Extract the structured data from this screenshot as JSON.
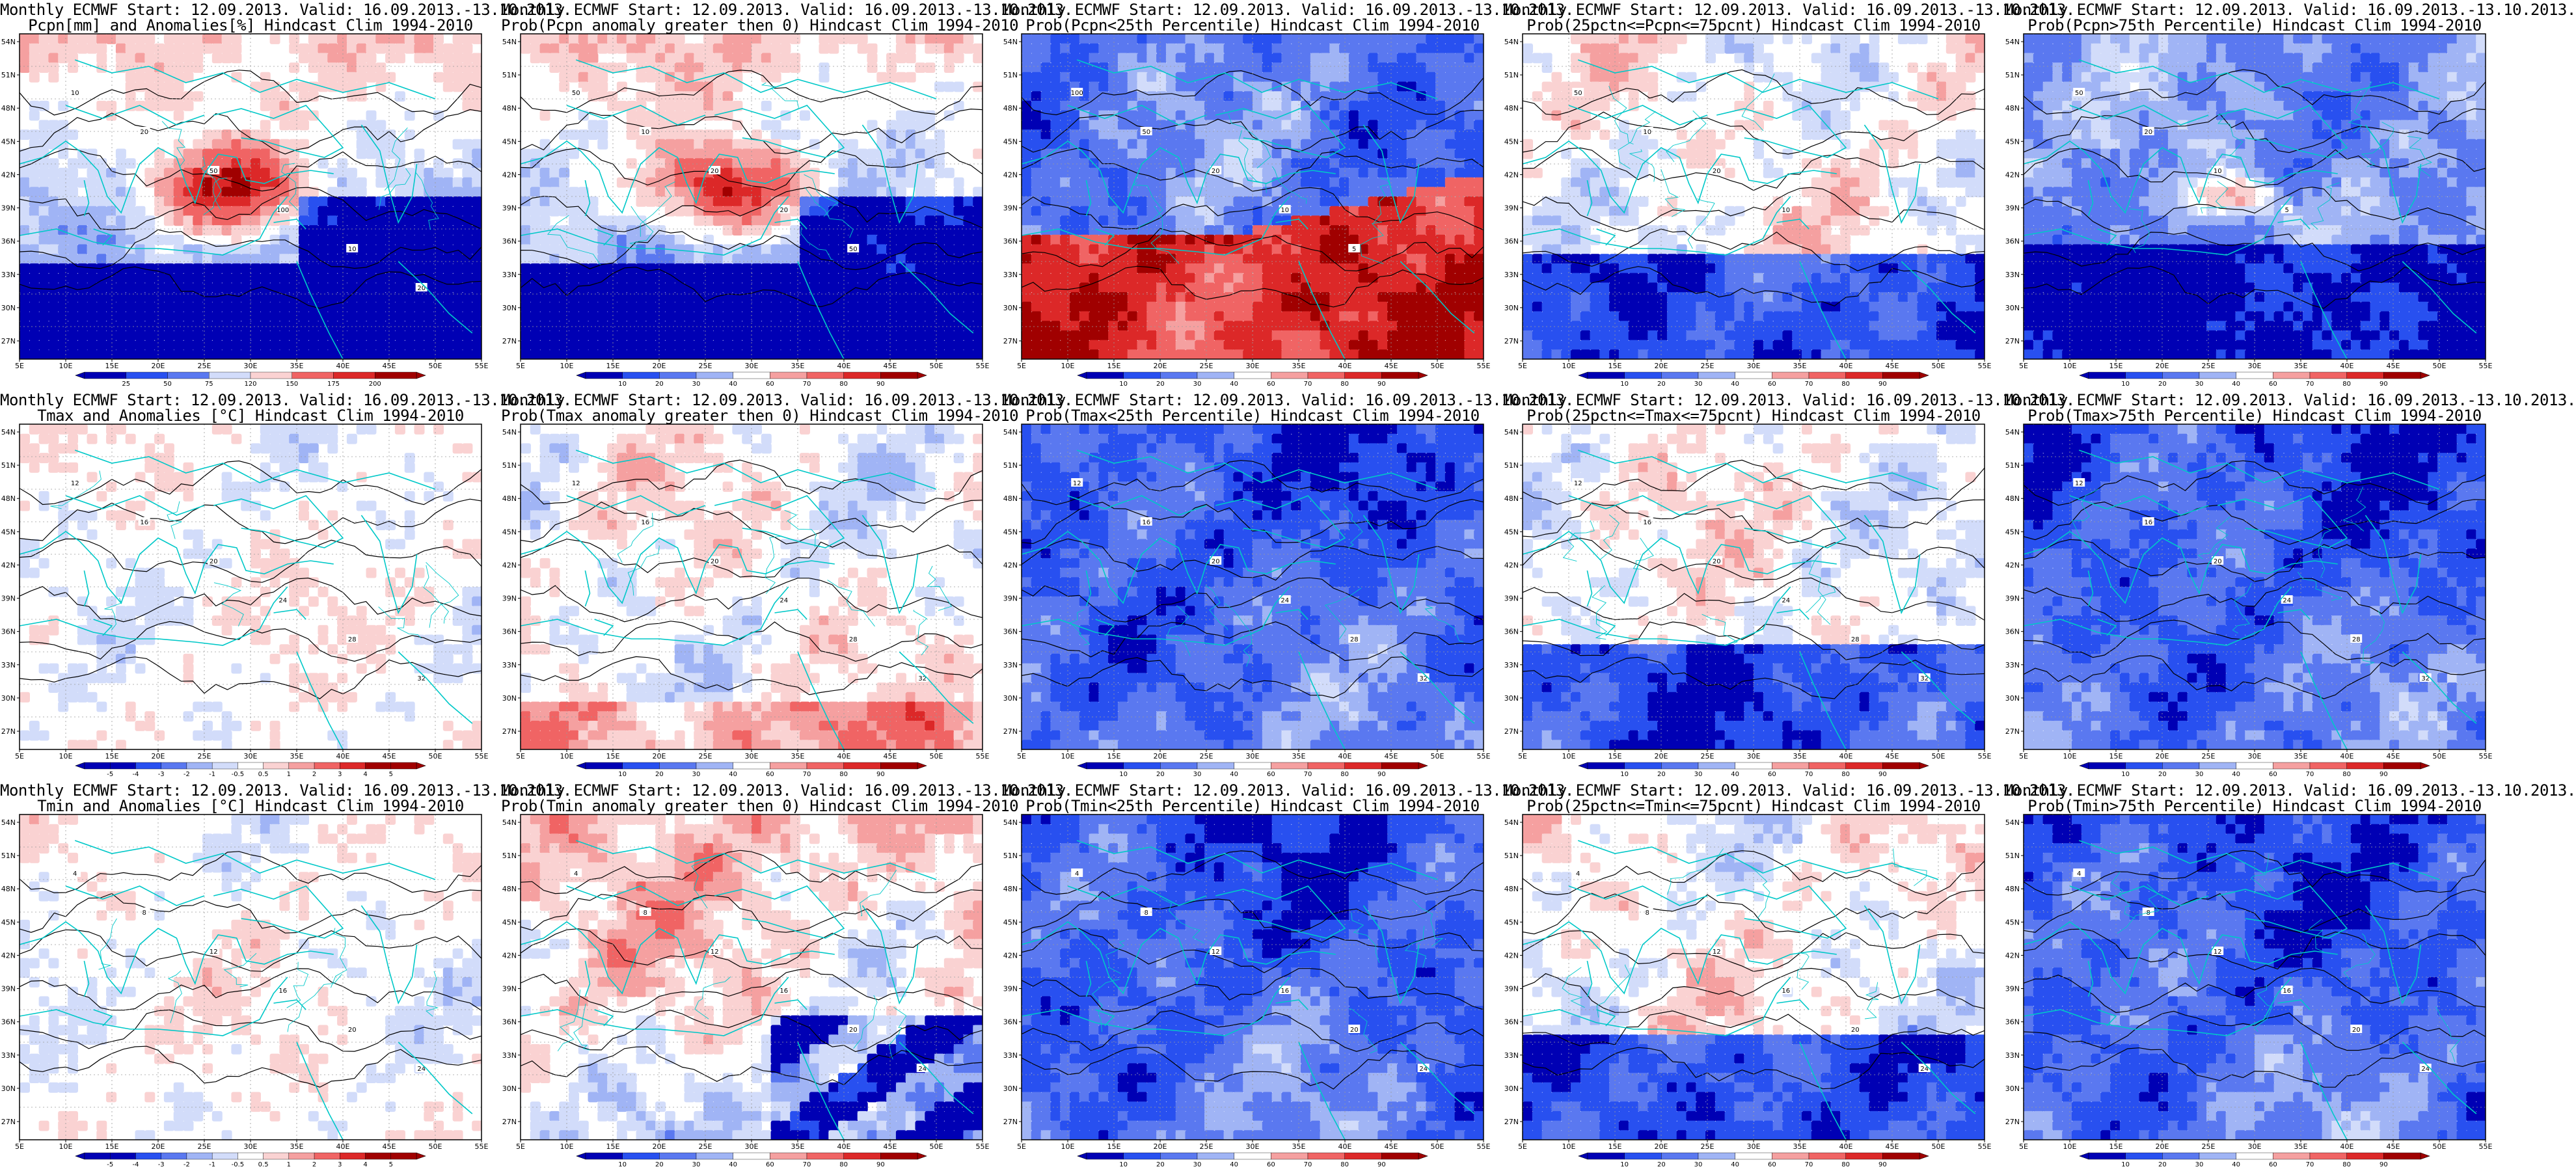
{
  "scales": {
    "pcpn_anom": [
      "25",
      "50",
      "75",
      "120",
      "150",
      "175",
      "200"
    ],
    "prob": [
      "10",
      "20",
      "30",
      "40",
      "60",
      "70",
      "80",
      "90"
    ],
    "temp_anom": [
      "-5",
      "-4",
      "-3",
      "-2",
      "-1",
      "-0.5",
      "0.5",
      "1",
      "2",
      "3",
      "4",
      "5"
    ]
  },
  "axes": {
    "x_ticks": [
      "5E",
      "10E",
      "15E",
      "20E",
      "25E",
      "30E",
      "35E",
      "40E",
      "45E",
      "50E",
      "55E"
    ],
    "y_ticks": [
      "54N",
      "51N",
      "48N",
      "45N",
      "42N",
      "39N",
      "36N",
      "33N",
      "30N",
      "27N"
    ]
  },
  "palette": {
    "deep_blue": "#0000b4",
    "blue": "#2850f0",
    "mid_blue": "#5a78f0",
    "light_blue": "#a0b4f5",
    "pale_blue": "#d2dcfa",
    "white": "#ffffff",
    "pale_red": "#fad2d2",
    "light_red": "#f5a0a0",
    "mid_red": "#f06464",
    "red": "#dc2828",
    "deep_red": "#a00000",
    "coast": "#00c8c8",
    "contour": "#000000"
  },
  "panels": [
    {
      "id": "p00",
      "row": 0,
      "col": 0,
      "title1": "Monthly ECMWF Start: 12.09.2013. Valid: 16.09.2013.-13.10.2013.",
      "title2": "Pcpn[mm] and Anomalies[%] Hindcast Clim 1994-2010",
      "scale": "pcpn_anom",
      "style": "pcpn_anom",
      "contour_labels": [
        "10",
        "20",
        "50",
        "100",
        "10",
        "20",
        "5"
      ]
    },
    {
      "id": "p01",
      "row": 0,
      "col": 1,
      "title1": "Monthly ECMWF Start: 12.09.2013. Valid: 16.09.2013.-13.10.2013.",
      "title2": "Prob(Pcpn anomaly greater then 0) Hindcast Clim 1994-2010",
      "scale": "prob",
      "style": "pcpn_anom",
      "contour_labels": [
        "50",
        "10",
        "20",
        "20",
        "50"
      ]
    },
    {
      "id": "p02",
      "row": 0,
      "col": 2,
      "title1": "Monthly ECMWF Start: 12.09.2013. Valid: 16.09.2013.-13.10.2013.",
      "title2": "Prob(Pcpn<25th Percentile) Hindcast Clim 1994-2010",
      "scale": "prob",
      "style": "dry",
      "contour_labels": [
        "100",
        "50",
        "20",
        "10",
        "5"
      ]
    },
    {
      "id": "p03",
      "row": 0,
      "col": 3,
      "title1": "Monthly ECMWF Start: 12.09.2013. Valid: 16.09.2013.-13.10.2013.",
      "title2": "Prob(25pctn<=Pcpn<=75pcnt) Hindcast Clim 1994-2010",
      "scale": "prob",
      "style": "mid",
      "contour_labels": [
        "50",
        "10",
        "20",
        "10"
      ]
    },
    {
      "id": "p04",
      "row": 0,
      "col": 4,
      "title1": "Monthly ECMWF Start: 12.09.2013. Valid: 16.09.2013.-13.10.2013.",
      "title2": "Prob(Pcpn>75th Percentile) Hindcast Clim 1994-2010",
      "scale": "prob",
      "style": "wet",
      "contour_labels": [
        "50",
        "20",
        "10",
        "5"
      ]
    },
    {
      "id": "p10",
      "row": 1,
      "col": 0,
      "title1": "Monthly ECMWF Start: 12.09.2013. Valid: 16.09.2013.-13.10.2013.",
      "title2": "Tmax and Anomalies [°C] Hindcast Clim 1994-2010",
      "scale": "temp_anom",
      "style": "neutral",
      "contour_labels": [
        "12",
        "16",
        "20",
        "24",
        "28",
        "32"
      ]
    },
    {
      "id": "p11",
      "row": 1,
      "col": 1,
      "title1": "Monthly ECMWF Start: 12.09.2013. Valid: 16.09.2013.-13.10.2013.",
      "title2": "Prob(Tmax anomaly greater then 0) Hindcast Clim 1994-2010",
      "scale": "prob",
      "style": "warm_mix",
      "contour_labels": [
        "12",
        "16",
        "20",
        "24",
        "28",
        "32"
      ]
    },
    {
      "id": "p12",
      "row": 1,
      "col": 2,
      "title1": "Monthly ECMWF Start: 12.09.2013. Valid: 16.09.2013.-13.10.2013.",
      "title2": "Prob(Tmax<25th Percentile) Hindcast Clim 1994-2010",
      "scale": "prob",
      "style": "cold",
      "contour_labels": [
        "12",
        "16",
        "20",
        "24",
        "28",
        "32"
      ]
    },
    {
      "id": "p13",
      "row": 1,
      "col": 3,
      "title1": "Monthly ECMWF Start: 12.09.2013. Valid: 16.09.2013.-13.10.2013.",
      "title2": "Prob(25pctn<=Tmax<=75pcnt) Hindcast Clim 1994-2010",
      "scale": "prob",
      "style": "mid",
      "contour_labels": [
        "12",
        "16",
        "20",
        "24",
        "28",
        "32"
      ]
    },
    {
      "id": "p14",
      "row": 1,
      "col": 4,
      "title1": "Monthly ECMWF Start: 12.09.2013. Valid: 16.09.2013.-13.10.2013.",
      "title2": "Prob(Tmax>75th Percentile) Hindcast Clim 1994-2010",
      "scale": "prob",
      "style": "cold",
      "contour_labels": [
        "12",
        "16",
        "20",
        "24",
        "28",
        "32"
      ]
    },
    {
      "id": "p20",
      "row": 2,
      "col": 0,
      "title1": "Monthly ECMWF Start: 12.09.2013. Valid: 16.09.2013.-13.10.2013.",
      "title2": "Tmin and Anomalies [°C] Hindcast Clim 1994-2010",
      "scale": "temp_anom",
      "style": "neutral",
      "contour_labels": [
        "4",
        "8",
        "12",
        "16",
        "20",
        "24"
      ]
    },
    {
      "id": "p21",
      "row": 2,
      "col": 1,
      "title1": "Monthly ECMWF Start: 12.09.2013. Valid: 16.09.2013.-13.10.2013.",
      "title2": "Prob(Tmin anomaly greater then 0) Hindcast Clim 1994-2010",
      "scale": "prob",
      "style": "warm",
      "contour_labels": [
        "4",
        "8",
        "12",
        "16",
        "20",
        "24"
      ]
    },
    {
      "id": "p22",
      "row": 2,
      "col": 2,
      "title1": "Monthly ECMWF Start: 12.09.2013. Valid: 16.09.2013.-13.10.2013.",
      "title2": "Prob(Tmin<25th Percentile) Hindcast Clim 1994-2010",
      "scale": "prob",
      "style": "cold",
      "contour_labels": [
        "4",
        "8",
        "12",
        "16",
        "20",
        "24"
      ]
    },
    {
      "id": "p23",
      "row": 2,
      "col": 3,
      "title1": "Monthly ECMWF Start: 12.09.2013. Valid: 16.09.2013.-13.10.2013.",
      "title2": "Prob(25pctn<=Tmin<=75pcnt) Hindcast Clim 1994-2010",
      "scale": "prob",
      "style": "mid",
      "contour_labels": [
        "4",
        "8",
        "12",
        "16",
        "20",
        "24"
      ]
    },
    {
      "id": "p24",
      "row": 2,
      "col": 4,
      "title1": "Monthly ECMWF Start: 12.09.2013. Valid: 16.09.2013.-13.10.2013.",
      "title2": "Prob(Tmin>75th Percentile) Hindcast Clim 1994-2010",
      "scale": "prob",
      "style": "cold",
      "contour_labels": [
        "4",
        "8",
        "12",
        "16",
        "20",
        "24"
      ]
    }
  ]
}
